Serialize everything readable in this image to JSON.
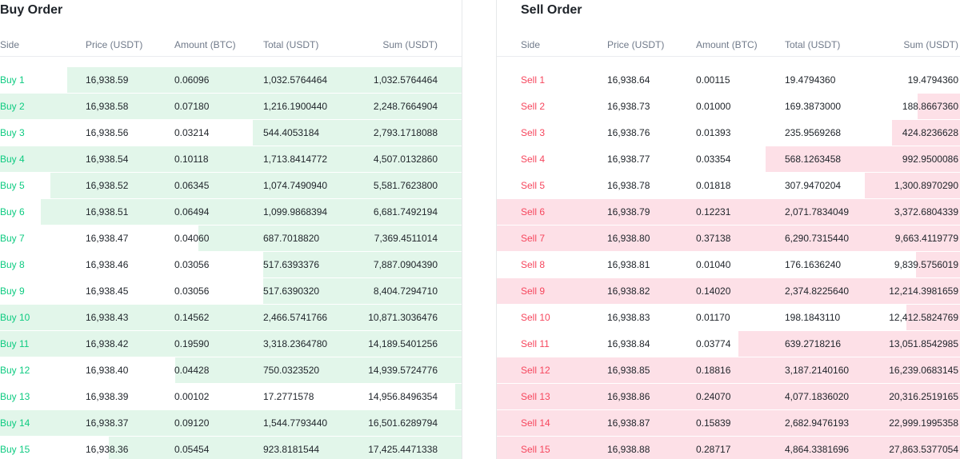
{
  "buy": {
    "title": "Buy Order",
    "headers": {
      "side": "Side",
      "price": "Price (USDT)",
      "amount": "Amount (BTC)",
      "total": "Total (USDT)",
      "sum": "Sum (USDT)"
    },
    "rows": [
      {
        "side": "Buy 1",
        "price": "16,938.59",
        "amount": "0.06096",
        "total": "1,032.5764464",
        "sum": "1,032.5764464",
        "depth": 0.855
      },
      {
        "side": "Buy 2",
        "price": "16,938.58",
        "amount": "0.07180",
        "total": "1,216.1900440",
        "sum": "2,248.7664904",
        "depth": 1.0
      },
      {
        "side": "Buy 3",
        "price": "16,938.56",
        "amount": "0.03214",
        "total": "544.4053184",
        "sum": "2,793.1718088",
        "depth": 0.452
      },
      {
        "side": "Buy 4",
        "price": "16,938.54",
        "amount": "0.10118",
        "total": "1,713.8414772",
        "sum": "4,507.0132860",
        "depth": 1.0
      },
      {
        "side": "Buy 5",
        "price": "16,938.52",
        "amount": "0.06345",
        "total": "1,074.7490940",
        "sum": "5,581.7623800",
        "depth": 0.891
      },
      {
        "side": "Buy 6",
        "price": "16,938.51",
        "amount": "0.06494",
        "total": "1,099.9868394",
        "sum": "6,681.7492194",
        "depth": 0.911
      },
      {
        "side": "Buy 7",
        "price": "16,938.47",
        "amount": "0.04060",
        "total": "687.7018820",
        "sum": "7,369.4511014",
        "depth": 0.57
      },
      {
        "side": "Buy 8",
        "price": "16,938.46",
        "amount": "0.03056",
        "total": "517.6393376",
        "sum": "7,887.0904390",
        "depth": 0.43
      },
      {
        "side": "Buy 9",
        "price": "16,938.45",
        "amount": "0.03056",
        "total": "517.6390320",
        "sum": "8,404.7294710",
        "depth": 0.43
      },
      {
        "side": "Buy 10",
        "price": "16,938.43",
        "amount": "0.14562",
        "total": "2,466.5741766",
        "sum": "10,871.3036476",
        "depth": 1.0
      },
      {
        "side": "Buy 11",
        "price": "16,938.42",
        "amount": "0.19590",
        "total": "3,318.2364780",
        "sum": "14,189.5401256",
        "depth": 1.0
      },
      {
        "side": "Buy 12",
        "price": "16,938.40",
        "amount": "0.04428",
        "total": "750.0323520",
        "sum": "14,939.5724776",
        "depth": 0.621
      },
      {
        "side": "Buy 13",
        "price": "16,938.39",
        "amount": "0.00102",
        "total": "17.2771578",
        "sum": "14,956.8496354",
        "depth": 0.014
      },
      {
        "side": "Buy 14",
        "price": "16,938.37",
        "amount": "0.09120",
        "total": "1,544.7793440",
        "sum": "16,501.6289794",
        "depth": 1.0
      },
      {
        "side": "Buy 15",
        "price": "16,938.36",
        "amount": "0.05454",
        "total": "923.8181544",
        "sum": "17,425.4471338",
        "depth": 0.765
      }
    ]
  },
  "sell": {
    "title": "Sell Order",
    "headers": {
      "side": "Side",
      "price": "Price (USDT)",
      "amount": "Amount (BTC)",
      "total": "Total (USDT)",
      "sum": "Sum (USDT)"
    },
    "rows": [
      {
        "side": "Sell 1",
        "price": "16,938.64",
        "amount": "0.00115",
        "total": "19.4794360",
        "sum": "19.4794360",
        "depth": 0.0
      },
      {
        "side": "Sell 2",
        "price": "16,938.73",
        "amount": "0.01000",
        "total": "169.3873000",
        "sum": "188.8667360",
        "depth": 0.091
      },
      {
        "side": "Sell 3",
        "price": "16,938.76",
        "amount": "0.01393",
        "total": "235.9569268",
        "sum": "424.8236628",
        "depth": 0.146
      },
      {
        "side": "Sell 4",
        "price": "16,938.77",
        "amount": "0.03354",
        "total": "568.1263458",
        "sum": "992.9500086",
        "depth": 0.419
      },
      {
        "side": "Sell 5",
        "price": "16,938.78",
        "amount": "0.01818",
        "total": "307.9470204",
        "sum": "1,300.8970290",
        "depth": 0.205
      },
      {
        "side": "Sell 6",
        "price": "16,938.79",
        "amount": "0.12231",
        "total": "2,071.7834049",
        "sum": "3,372.6804339",
        "depth": 1.0
      },
      {
        "side": "Sell 7",
        "price": "16,938.80",
        "amount": "0.37138",
        "total": "6,290.7315440",
        "sum": "9,663.4119779",
        "depth": 1.0
      },
      {
        "side": "Sell 8",
        "price": "16,938.81",
        "amount": "0.01040",
        "total": "176.1636240",
        "sum": "9,839.5756019",
        "depth": 0.095
      },
      {
        "side": "Sell 9",
        "price": "16,938.82",
        "amount": "0.14020",
        "total": "2,374.8225640",
        "sum": "12,214.3981659",
        "depth": 1.0
      },
      {
        "side": "Sell 10",
        "price": "16,938.83",
        "amount": "0.01170",
        "total": "198.1843110",
        "sum": "12,412.5824769",
        "depth": 0.116
      },
      {
        "side": "Sell 11",
        "price": "16,938.84",
        "amount": "0.03774",
        "total": "639.2718216",
        "sum": "13,051.8542985",
        "depth": 0.478
      },
      {
        "side": "Sell 12",
        "price": "16,938.85",
        "amount": "0.18816",
        "total": "3,187.2140160",
        "sum": "16,239.0683145",
        "depth": 1.0
      },
      {
        "side": "Sell 13",
        "price": "16,938.86",
        "amount": "0.24070",
        "total": "4,077.1836020",
        "sum": "20,316.2519165",
        "depth": 1.0
      },
      {
        "side": "Sell 14",
        "price": "16,938.87",
        "amount": "0.15839",
        "total": "2,682.9476193",
        "sum": "22,999.1995358",
        "depth": 1.0
      },
      {
        "side": "Sell 15",
        "price": "16,938.88",
        "amount": "0.28717",
        "total": "4,864.3381696",
        "sum": "27,863.5377054",
        "depth": 1.0
      }
    ]
  },
  "colors": {
    "buy_text": "#0ecb81",
    "sell_text": "#f6465d",
    "buy_depth": "#e2f6ea",
    "sell_depth": "#fde0e7"
  }
}
